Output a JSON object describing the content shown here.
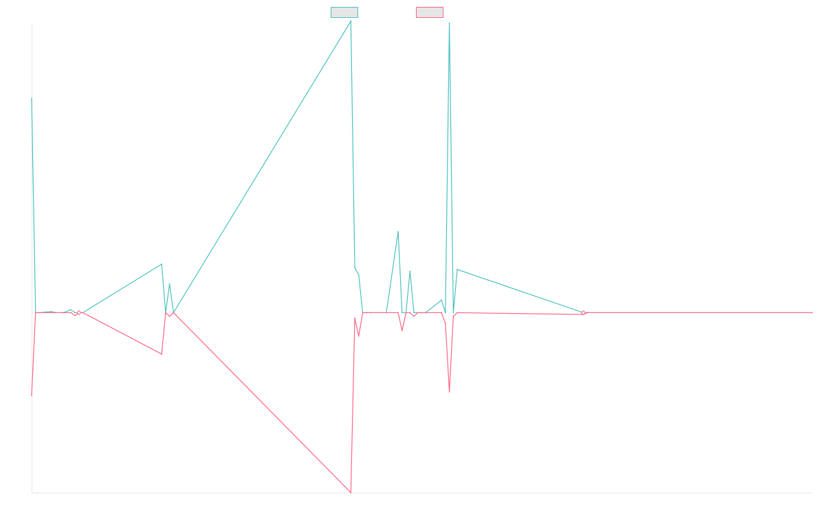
{
  "chart_data": {
    "type": "line",
    "title": "",
    "xlabel": "",
    "ylabel": "",
    "legend_position": "top",
    "grid": false,
    "ylim": [
      -100,
      160
    ],
    "x": [
      0,
      1,
      2,
      5,
      6,
      8,
      10,
      11,
      12,
      13,
      33,
      34,
      35,
      36,
      81,
      82,
      83,
      84,
      85,
      86,
      90,
      93,
      94,
      95,
      96,
      97,
      98,
      99,
      100,
      104,
      105,
      106,
      107,
      108,
      140,
      141,
      198
    ],
    "series": [
      {
        "name": "",
        "color": "#4bc0c0",
        "values": [
          119,
          0,
          0,
          0.6,
          0,
          0,
          1.6,
          0,
          0,
          0,
          27,
          0,
          16,
          0,
          162,
          25,
          21,
          0,
          0,
          0,
          0,
          45,
          0,
          0,
          23,
          0,
          0,
          0,
          0,
          7,
          0,
          161,
          0,
          24,
          0,
          0,
          0
        ]
      },
      {
        "name": "",
        "color": "#ff6384",
        "values": [
          -46,
          0,
          0,
          0,
          0,
          0,
          0,
          -1.6,
          0,
          0,
          -23,
          0,
          -2,
          0,
          -100,
          -3,
          -13,
          0,
          0,
          0,
          0,
          0,
          -10,
          0,
          0,
          -2,
          0,
          0,
          0,
          0,
          -6,
          -44,
          -2,
          0,
          -1,
          0,
          0
        ]
      }
    ]
  }
}
